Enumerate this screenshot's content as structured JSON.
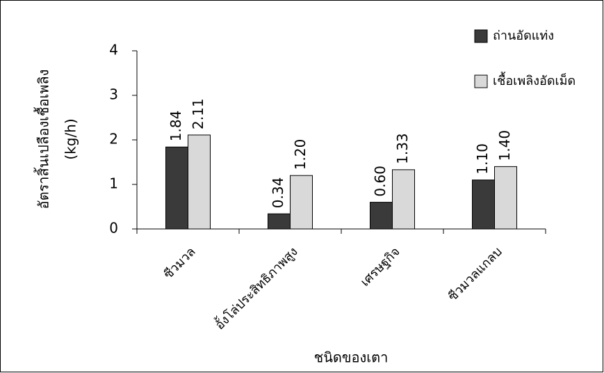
{
  "chart_data": {
    "type": "bar",
    "ylabel": [
      "อัตราสิ้นเปลืองเชื้อเพลิง",
      "(kg/h)"
    ],
    "xlabel": "ชนิดของเตา",
    "categories": [
      "ซีวมวล",
      "อั้งโล่ประสิทธิภาพสูง",
      "เศรษฐกิจ",
      "ซีวมวลแกลบ"
    ],
    "series": [
      {
        "name": "ถ่านอัดแท่ง",
        "color": "#3a3a3a",
        "values": [
          1.84,
          0.34,
          0.6,
          1.1
        ],
        "value_labels": [
          "1.84",
          "0.34",
          "0.60",
          "1.10"
        ]
      },
      {
        "name": "เชื้อเพลิงอัดเม็ด",
        "color": "#d9d9d9",
        "values": [
          2.11,
          1.2,
          1.33,
          1.4
        ],
        "value_labels": [
          "2.11",
          "1.20",
          "1.33",
          "1.40"
        ]
      }
    ],
    "ylim": [
      0,
      4
    ],
    "yticks": [
      0,
      1,
      2,
      3,
      4
    ],
    "legend": "top-right"
  }
}
